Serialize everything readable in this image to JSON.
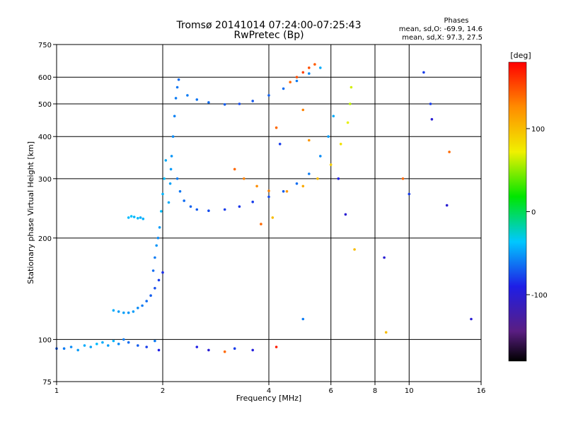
{
  "chart_data": {
    "type": "scatter",
    "title": "Tromsø 20141014 07:24:00-07:25:43",
    "subtitle": "RwPretec (Bp)",
    "xlabel": "Frequency [MHz]",
    "ylabel": "Stationary phase Virtual Height [km]",
    "x_scale": "log",
    "y_scale": "log",
    "xlim": [
      1,
      16
    ],
    "ylim": [
      75,
      750
    ],
    "x_ticks": [
      1,
      2,
      4,
      6,
      8,
      10,
      16
    ],
    "x_tick_labels": [
      "1",
      "2",
      "4",
      "6",
      "8",
      "10",
      "16"
    ],
    "x_grid_lines": [
      2,
      4,
      6,
      8,
      10
    ],
    "y_ticks": [
      75,
      100,
      200,
      300,
      400,
      500,
      600,
      750
    ],
    "y_tick_labels": [
      "75",
      "100",
      "200",
      "300",
      "400",
      "500",
      "600",
      "750"
    ],
    "y_grid_lines": [
      100,
      200,
      300,
      400,
      500,
      600
    ],
    "grid": true,
    "stats": {
      "heading": "Phases",
      "o_line": "mean, sd,O: -69.9, 14.6",
      "x_line": "mean, sd,X: 97.3, 27.5"
    },
    "colorbar": {
      "label": "[deg]",
      "range": [
        -180,
        180
      ],
      "ticks": [
        100,
        0,
        -100
      ],
      "tick_labels": [
        "100",
        "0",
        "-100"
      ],
      "colormap": "rainbow: black → purple → blue → cyan → green → yellow → orange → red"
    },
    "series": [
      {
        "points": [
          [
            1.0,
            94,
            -70
          ],
          [
            1.05,
            94,
            -60
          ],
          [
            1.1,
            95,
            -55
          ],
          [
            1.15,
            93,
            -50
          ],
          [
            1.2,
            96,
            -45
          ],
          [
            1.25,
            95,
            -48
          ],
          [
            1.3,
            97,
            -40
          ],
          [
            1.35,
            98,
            -45
          ],
          [
            1.4,
            96,
            -50
          ],
          [
            1.45,
            99,
            -42
          ],
          [
            1.5,
            97,
            -55
          ],
          [
            1.55,
            100,
            -60
          ],
          [
            1.6,
            98,
            -65
          ],
          [
            1.7,
            96,
            -70
          ],
          [
            1.8,
            95,
            -80
          ],
          [
            1.9,
            99,
            -60
          ],
          [
            1.95,
            93,
            -90
          ]
        ]
      },
      {
        "points": [
          [
            1.45,
            122,
            -45
          ],
          [
            1.5,
            121,
            -50
          ],
          [
            1.55,
            120,
            -48
          ],
          [
            1.6,
            120,
            -52
          ],
          [
            1.65,
            121,
            -50
          ],
          [
            1.7,
            124,
            -55
          ],
          [
            1.75,
            126,
            -60
          ],
          [
            1.8,
            130,
            -65
          ],
          [
            1.85,
            135,
            -70
          ],
          [
            1.9,
            142,
            -75
          ],
          [
            1.95,
            150,
            -80
          ],
          [
            2.0,
            158,
            -85
          ]
        ]
      },
      {
        "points": [
          [
            1.6,
            230,
            -40
          ],
          [
            1.63,
            232,
            -38
          ],
          [
            1.66,
            231,
            -42
          ],
          [
            1.7,
            229,
            -40
          ],
          [
            1.73,
            230,
            -45
          ],
          [
            1.76,
            228,
            -43
          ]
        ]
      },
      {
        "points": [
          [
            2.08,
            255,
            -45
          ],
          [
            2.1,
            290,
            -48
          ],
          [
            2.11,
            320,
            -50
          ],
          [
            2.12,
            350,
            -52
          ],
          [
            2.14,
            400,
            -55
          ],
          [
            2.16,
            460,
            -58
          ],
          [
            2.18,
            520,
            -60
          ],
          [
            2.2,
            560,
            -62
          ],
          [
            2.22,
            590,
            -65
          ],
          [
            2.04,
            340,
            -45
          ],
          [
            2.02,
            300,
            -40
          ],
          [
            2.0,
            270,
            -42
          ],
          [
            1.98,
            240,
            -38
          ],
          [
            1.96,
            215,
            -50
          ],
          [
            1.94,
            200,
            -55
          ],
          [
            1.92,
            190,
            -52
          ],
          [
            1.9,
            175,
            -60
          ],
          [
            1.88,
            160,
            -65
          ]
        ]
      },
      {
        "points": [
          [
            2.2,
            300,
            -60
          ],
          [
            2.24,
            275,
            -62
          ],
          [
            2.3,
            258,
            -65
          ],
          [
            2.4,
            248,
            -68
          ],
          [
            2.5,
            243,
            -70
          ],
          [
            2.7,
            241,
            -75
          ],
          [
            3.0,
            243,
            -80
          ],
          [
            3.3,
            248,
            -82
          ],
          [
            3.6,
            256,
            -80
          ],
          [
            4.0,
            265,
            -75
          ],
          [
            4.4,
            275,
            -70
          ],
          [
            4.8,
            290,
            -65
          ],
          [
            5.2,
            310,
            -60
          ],
          [
            5.6,
            350,
            -55
          ],
          [
            5.9,
            400,
            -50
          ],
          [
            6.1,
            460,
            -45
          ]
        ]
      },
      {
        "points": [
          [
            2.35,
            530,
            -60
          ],
          [
            2.5,
            515,
            -62
          ],
          [
            2.7,
            505,
            -65
          ],
          [
            3.0,
            498,
            -70
          ],
          [
            3.3,
            500,
            -75
          ],
          [
            3.6,
            510,
            -72
          ],
          [
            4.0,
            530,
            -68
          ],
          [
            4.4,
            555,
            -65
          ],
          [
            4.8,
            585,
            -60
          ],
          [
            5.2,
            615,
            -55
          ],
          [
            5.6,
            640,
            -45
          ]
        ]
      },
      {
        "points": [
          [
            3.2,
            320,
            140
          ],
          [
            3.4,
            300,
            130
          ],
          [
            3.7,
            285,
            125
          ],
          [
            4.0,
            276,
            130
          ],
          [
            4.5,
            275,
            120
          ],
          [
            5.0,
            285,
            110
          ],
          [
            5.5,
            300,
            100
          ],
          [
            6.0,
            330,
            90
          ],
          [
            6.4,
            380,
            80
          ],
          [
            6.7,
            440,
            70
          ],
          [
            6.8,
            500,
            60
          ],
          [
            6.85,
            560,
            65
          ]
        ]
      },
      {
        "points": [
          [
            4.6,
            580,
            140
          ],
          [
            4.8,
            600,
            150
          ],
          [
            5.0,
            620,
            155
          ],
          [
            5.2,
            640,
            150
          ],
          [
            5.4,
            655,
            145
          ]
        ]
      },
      {
        "points": [
          [
            2.5,
            95,
            -90
          ],
          [
            2.7,
            93,
            -100
          ],
          [
            3.0,
            92,
            140
          ],
          [
            3.2,
            94,
            -80
          ],
          [
            3.6,
            93,
            -95
          ],
          [
            4.2,
            95,
            170
          ],
          [
            5.0,
            115,
            -60
          ],
          [
            6.3,
            300,
            -90
          ],
          [
            6.6,
            235,
            -100
          ],
          [
            7.0,
            185,
            100
          ],
          [
            8.5,
            175,
            -100
          ],
          [
            8.6,
            105,
            100
          ],
          [
            9.6,
            300,
            140
          ],
          [
            10.0,
            270,
            -80
          ],
          [
            11.0,
            620,
            -80
          ],
          [
            11.5,
            500,
            -80
          ],
          [
            11.6,
            450,
            -100
          ],
          [
            12.8,
            250,
            -100
          ],
          [
            13.0,
            360,
            140
          ],
          [
            15.0,
            115,
            -100
          ],
          [
            4.2,
            425,
            140
          ],
          [
            4.3,
            380,
            -80
          ],
          [
            5.0,
            480,
            130
          ],
          [
            5.2,
            390,
            120
          ],
          [
            4.1,
            230,
            100
          ],
          [
            3.8,
            220,
            140
          ]
        ]
      }
    ]
  }
}
